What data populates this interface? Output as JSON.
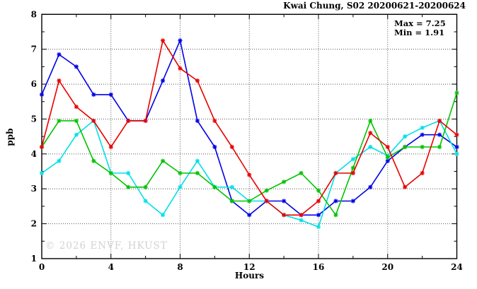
{
  "title": "Kwai Chung, S02 20200621-20200624",
  "stats": {
    "max_label": "Max = 7.25",
    "min_label": "Min = 1.91"
  },
  "watermark": "© 2026 ENVF, HKUST",
  "chart_data": {
    "type": "line",
    "title": "Kwai Chung, S02 20200621-20200624",
    "xlabel": "Hours",
    "ylabel": "ppb",
    "xlim": [
      0,
      24
    ],
    "ylim": [
      1,
      8
    ],
    "xticks": [
      0,
      4,
      8,
      12,
      16,
      20,
      24
    ],
    "xticks_minor": [
      2,
      6,
      10,
      14,
      18,
      22
    ],
    "yticks": [
      1,
      2,
      3,
      4,
      5,
      6,
      7,
      8
    ],
    "yticks_minor": [
      1.5,
      2.5,
      3.5,
      4.5,
      5.5,
      6.5,
      7.5
    ],
    "grid": true,
    "legend_position": "none",
    "marker": "asterisk",
    "annotations": {
      "max": "Max = 7.25",
      "min": "Min = 1.91"
    },
    "x": [
      0,
      1,
      2,
      3,
      4,
      5,
      6,
      7,
      8,
      9,
      10,
      11,
      12,
      13,
      14,
      15,
      16,
      17,
      18,
      19,
      20,
      21,
      22,
      23,
      24
    ],
    "series": [
      {
        "name": "blue",
        "color": "#0000e8",
        "values": [
          5.7,
          6.85,
          6.5,
          5.7,
          5.7,
          4.95,
          4.95,
          6.1,
          7.25,
          4.95,
          4.2,
          2.65,
          2.25,
          2.65,
          2.65,
          2.25,
          2.25,
          2.65,
          2.65,
          3.05,
          3.8,
          4.2,
          4.55,
          4.55,
          4.2
        ]
      },
      {
        "name": "cyan",
        "color": "#00e0e8",
        "values": [
          3.45,
          3.8,
          4.55,
          4.95,
          3.45,
          3.45,
          2.65,
          2.25,
          3.05,
          3.8,
          3.05,
          3.05,
          2.65,
          2.65,
          2.25,
          2.1,
          1.91,
          3.45,
          3.85,
          4.2,
          3.95,
          4.5,
          4.75,
          4.95,
          4.0
        ]
      },
      {
        "name": "green",
        "color": "#00c400",
        "values": [
          4.2,
          4.95,
          4.95,
          3.8,
          3.45,
          3.05,
          3.05,
          3.8,
          3.45,
          3.45,
          3.05,
          2.65,
          2.65,
          2.95,
          3.2,
          3.45,
          2.95,
          2.25,
          3.6,
          4.95,
          3.9,
          4.2,
          4.2,
          4.2,
          5.75
        ]
      },
      {
        "name": "red",
        "color": "#e80000",
        "values": [
          4.2,
          6.1,
          5.35,
          4.95,
          4.2,
          4.95,
          4.95,
          7.25,
          6.45,
          6.1,
          4.95,
          4.2,
          3.4,
          2.65,
          2.25,
          2.25,
          2.65,
          3.45,
          3.45,
          4.6,
          4.2,
          3.05,
          3.45,
          4.95,
          4.55
        ]
      }
    ]
  }
}
